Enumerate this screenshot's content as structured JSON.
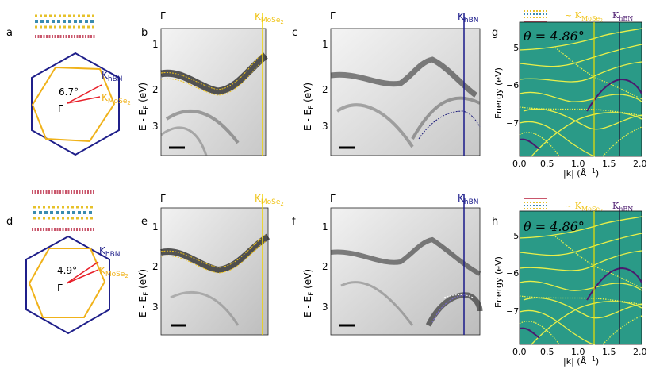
{
  "panel_labels": {
    "a": "a",
    "b": "b",
    "c": "c",
    "d": "d",
    "e": "e",
    "f": "f",
    "g": "g",
    "h": "h"
  },
  "bz": {
    "top": {
      "angle": "6.7°",
      "k_hbn_main": "K",
      "k_hbn_sub": "hBN",
      "k_mose2_main": "K",
      "k_mose2_sub": "MoSe",
      "k_mose2_sub2": "2",
      "gamma": "Γ"
    },
    "bottom": {
      "angle": "4.9°",
      "k_hbn_main": "K",
      "k_hbn_sub": "hBN",
      "k_mose2_main": "K",
      "k_mose2_sub": "MoSe",
      "k_mose2_sub2": "2",
      "gamma": "Γ"
    }
  },
  "arpes": {
    "gamma": "Γ",
    "ylabel_pre": "E - E",
    "ylabel_sub": "F",
    "ylabel_post": " (eV)",
    "yticks": [
      "1",
      "2",
      "3"
    ],
    "k_mose2_main": "K",
    "k_mose2_sub": "MoSe",
    "k_mose2_sub2": "2",
    "k_hbn_main": "K",
    "k_hbn_sub": "hBN"
  },
  "theory": {
    "theta": "θ = 4.86°",
    "approx_label": "~ K",
    "approx_sub": "MoSe",
    "approx_sub2": "2",
    "khbn_main": "K",
    "khbn_sub": "hBN",
    "ylabel": "Energy (eV)",
    "xlabel_pre": "|k| (Å",
    "xlabel_sup": "−1",
    "xlabel_post": ")",
    "yticks": [
      "−5",
      "−6",
      "−7"
    ],
    "xticks": [
      "0.0",
      "0.5",
      "1.0",
      "1.5",
      "2.0"
    ]
  },
  "colors": {
    "hbn": "#1f1f8a",
    "mose2": "#f0c419",
    "angle_line": "#e8202a",
    "theory_bg": "#2a9a87",
    "theory_band": "#e8ef4a",
    "purple": "#4b1a6e"
  }
}
